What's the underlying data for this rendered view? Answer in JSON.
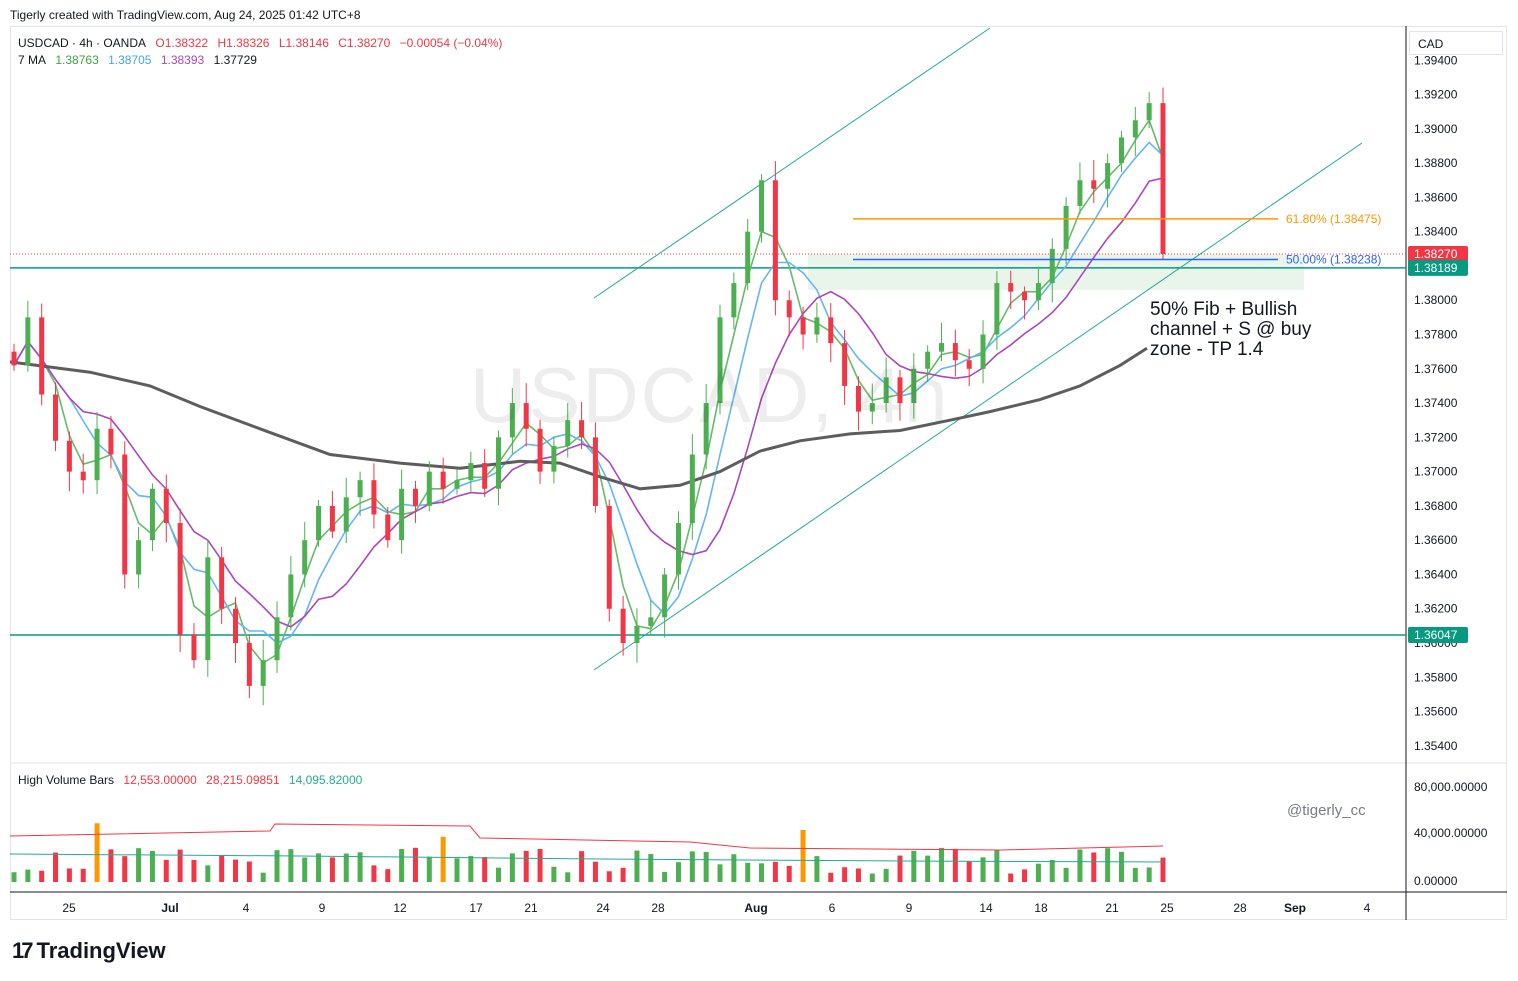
{
  "header": {
    "created_by": "Tigerly created with TradingView.com, Aug 24, 2025 01:42 UTC+8"
  },
  "legend": {
    "symbol": "USDCAD · 4h · OANDA",
    "open": "O1.38322",
    "high": "H1.38326",
    "low": "L1.38146",
    "close": "C1.38270",
    "change": "−0.00054 (−0.04%)",
    "ma_label": "7 MA",
    "ma_values": [
      "1.38763",
      "1.38705",
      "1.38393",
      "1.37729"
    ]
  },
  "currency": "CAD",
  "watermark": "USDCAD, 4h",
  "annotation": "50% Fib + Bullish\nchannel + S @ buy\nzone - TP 1.4",
  "handle": "@tigerly_cc",
  "volume_legend": {
    "name": "High Volume Bars",
    "values": [
      "12,553.00000",
      "28,215.09851",
      "14,095.82000"
    ]
  },
  "footer": {
    "brand": "TradingView",
    "mark": "17"
  },
  "colors": {
    "up": "#4caf50",
    "down": "#f23645",
    "ma_fast": "#66bb6a",
    "ma_mid": "#64b5f6",
    "ma_slow": "#ab47bc",
    "ma_long": "#5d5d5d",
    "fib618": "#ff9800",
    "fib50": "#2962ff",
    "level": "#089981",
    "channel": "#22ab94",
    "volume_spike": "#ff9800"
  },
  "chart_data": {
    "type": "candlestick",
    "symbol": "USDCAD",
    "timeframe": "4h",
    "y_axis": {
      "ticks": [
        "1.39400",
        "1.39200",
        "1.39000",
        "1.38800",
        "1.38600",
        "1.38400",
        "1.38200",
        "1.38000",
        "1.37800",
        "1.37600",
        "1.37400",
        "1.37200",
        "1.37000",
        "1.36800",
        "1.36600",
        "1.36400",
        "1.36200",
        "1.36000",
        "1.35800",
        "1.35600",
        "1.35400"
      ],
      "range": [
        1.353,
        1.396
      ]
    },
    "x_axis": {
      "ticks": [
        "25",
        "Jul",
        "4",
        "9",
        "12",
        "17",
        "21",
        "24",
        "28",
        "Aug",
        "6",
        "9",
        "14",
        "18",
        "21",
        "25",
        "28",
        "Sep",
        "4"
      ]
    },
    "price_labels": {
      "last": "1.38270",
      "level_upper": "1.38189",
      "level_lower": "1.36047"
    },
    "horizontal_levels": [
      1.38189,
      1.36047
    ],
    "fibonacci": [
      {
        "label": "61.80% (1.38475)",
        "value": 1.38475
      },
      {
        "label": "50.00% (1.38238)",
        "value": 1.38238
      }
    ],
    "buy_zone": [
      1.3806,
      1.3827
    ],
    "closes_approx": [
      1.3762,
      1.379,
      1.3745,
      1.3718,
      1.37,
      1.3695,
      1.3725,
      1.371,
      1.364,
      1.366,
      1.369,
      1.367,
      1.3605,
      1.359,
      1.365,
      1.362,
      1.36,
      1.3575,
      1.359,
      1.3615,
      1.364,
      1.366,
      1.368,
      1.3665,
      1.3685,
      1.3695,
      1.3675,
      1.366,
      1.369,
      1.368,
      1.37,
      1.369,
      1.3695,
      1.3705,
      1.369,
      1.372,
      1.374,
      1.3725,
      1.37,
      1.3715,
      1.373,
      1.372,
      1.368,
      1.362,
      1.36,
      1.361,
      1.3615,
      1.364,
      1.367,
      1.371,
      1.374,
      1.379,
      1.381,
      1.384,
      1.387,
      1.38,
      1.379,
      1.378,
      1.379,
      1.3775,
      1.375,
      1.3735,
      1.374,
      1.3755,
      1.374,
      1.376,
      1.377,
      1.3775,
      1.3765,
      1.376,
      1.378,
      1.381,
      1.3805,
      1.38,
      1.381,
      1.383,
      1.3855,
      1.387,
      1.3865,
      1.388,
      1.3895,
      1.3905,
      1.3915,
      1.3827
    ],
    "volume_axis_ticks": [
      "80,000.00000",
      "40,000.00000",
      "0.00000"
    ]
  }
}
